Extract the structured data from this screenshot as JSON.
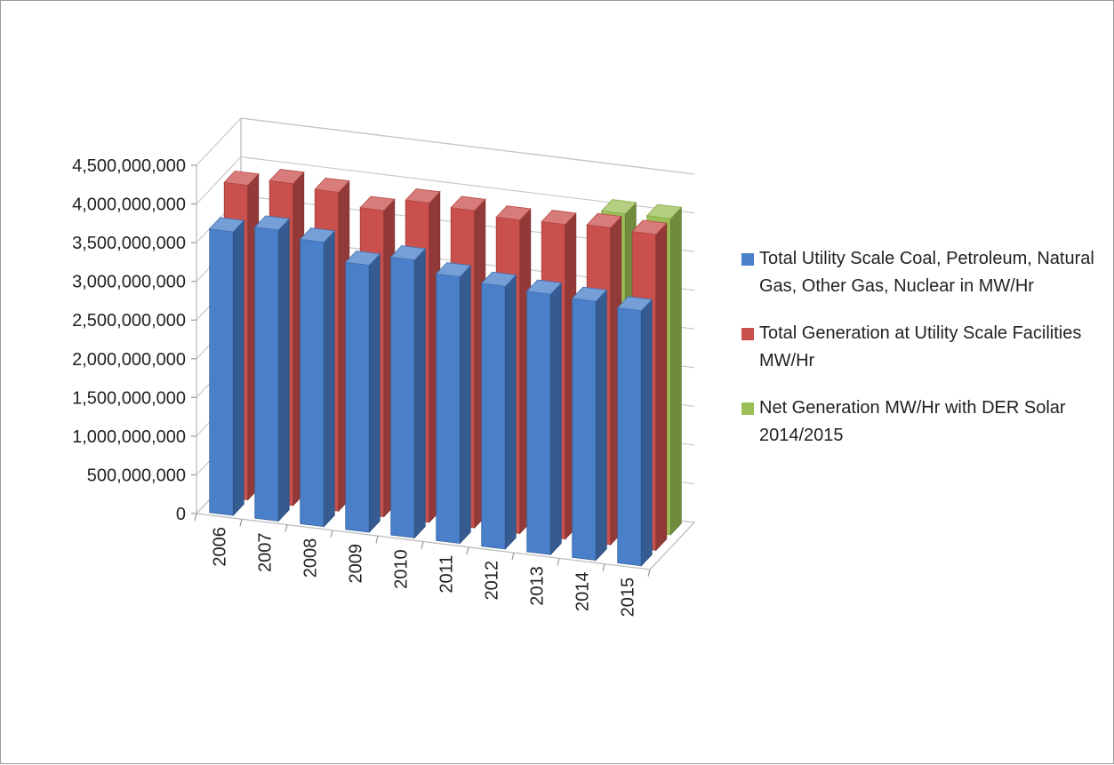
{
  "chart_data": {
    "type": "bar",
    "style": "3d-clustered-column",
    "categories": [
      "2006",
      "2007",
      "2008",
      "2009",
      "2010",
      "2011",
      "2012",
      "2013",
      "2014",
      "2015"
    ],
    "series": [
      {
        "name": "Total Utility Scale Coal, Petroleum, Natural Gas, Other Gas, Nuclear in MW/Hr",
        "color": "#4a7fc9",
        "values": [
          3665000000,
          3760000000,
          3675000000,
          3450000000,
          3590000000,
          3445000000,
          3395000000,
          3365000000,
          3345000000,
          3295000000
        ]
      },
      {
        "name": "Total Generation at Utility Scale Facilities MW/Hr",
        "color": "#c9504d",
        "values": [
          4065000000,
          4160000000,
          4120000000,
          3955000000,
          4125000000,
          4100000000,
          4050000000,
          4065000000,
          4095000000,
          4080000000
        ]
      },
      {
        "name": "Net Generation MW/Hr with DER Solar 2014/2015",
        "color": "#9bbf56",
        "values": [
          0,
          0,
          0,
          0,
          0,
          0,
          0,
          0,
          4075000000,
          4085000000
        ]
      }
    ],
    "yticks": [
      "0",
      "500,000,000",
      "1,000,000,000",
      "1,500,000,000",
      "2,000,000,000",
      "2,500,000,000",
      "3,000,000,000",
      "3,500,000,000",
      "4,000,000,000",
      "4,500,000,000"
    ],
    "ylim": [
      0,
      4500000000
    ],
    "grid": true,
    "legend_position": "right"
  }
}
